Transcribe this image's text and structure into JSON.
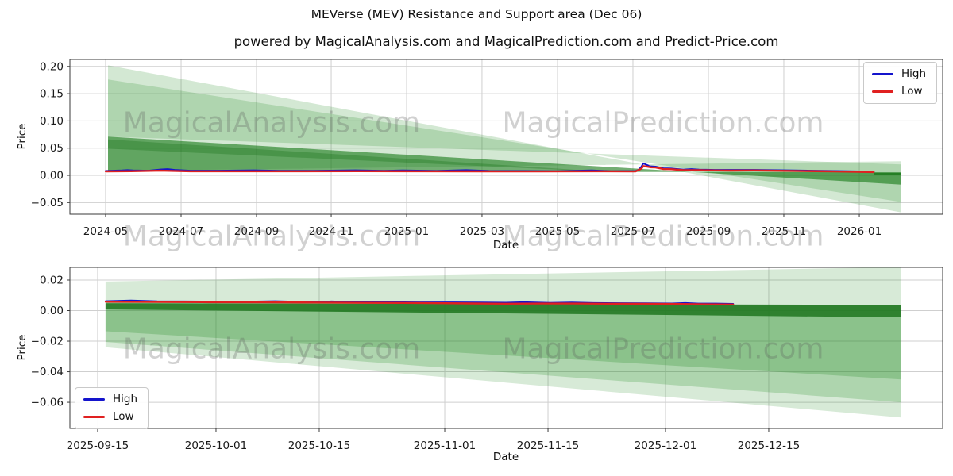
{
  "title": "MEVerse (MEV) Resistance and Support area (Dec 06)",
  "subtitle": "powered by MagicalAnalysis.com and MagicalPrediction.com and Predict-Price.com",
  "watermark": {
    "left_text": "MagicalAnalysis.com",
    "right_text": "MagicalPrediction.com"
  },
  "colors": {
    "high_line": "#1414cc",
    "low_line": "#e02020",
    "band_green_base": "#228b22",
    "grid": "#cfcfcf",
    "spine": "#3a3a3a"
  },
  "chart_data": [
    {
      "type": "line",
      "name": "long-term-forecast",
      "xlabel": "Date",
      "ylabel": "Price",
      "grid": true,
      "ylim": [
        -0.0714,
        0.2128
      ],
      "legend": {
        "position": "upper right",
        "items": [
          {
            "label": "High",
            "color": "#1414cc"
          },
          {
            "label": "Low",
            "color": "#e02020"
          }
        ]
      },
      "x_ticks": [
        {
          "f": 0.0409,
          "label": "2024-05"
        },
        {
          "f": 0.1274,
          "label": "2024-07"
        },
        {
          "f": 0.2138,
          "label": "2024-09"
        },
        {
          "f": 0.2994,
          "label": "2024-11"
        },
        {
          "f": 0.3858,
          "label": "2025-01"
        },
        {
          "f": 0.4722,
          "label": "2025-03"
        },
        {
          "f": 0.5587,
          "label": "2025-05"
        },
        {
          "f": 0.6451,
          "label": "2025-07"
        },
        {
          "f": 0.7316,
          "label": "2025-09"
        },
        {
          "f": 0.818,
          "label": "2025-11"
        },
        {
          "f": 0.9045,
          "label": "2026-01"
        }
      ],
      "y_ticks": [
        {
          "v": 0.2,
          "label": "0.20"
        },
        {
          "v": 0.15,
          "label": "0.15"
        },
        {
          "v": 0.1,
          "label": "0.10"
        },
        {
          "v": 0.05,
          "label": "0.05"
        },
        {
          "v": 0.0,
          "label": "0.00"
        },
        {
          "v": -0.05,
          "label": "−0.05"
        }
      ],
      "bands": [
        {
          "name": "resistance-outer",
          "color": "rgba(34,139,34,0.20)",
          "points": [
            [
              0.0437,
              0.202
            ],
            [
              0.9527,
              -0.068
            ],
            [
              0.9527,
              0.026
            ],
            [
              0.0437,
              0.008
            ]
          ]
        },
        {
          "name": "resistance-mid",
          "color": "rgba(34,139,34,0.20)",
          "points": [
            [
              0.0437,
              0.176
            ],
            [
              0.9527,
              -0.049
            ],
            [
              0.9527,
              0.02
            ],
            [
              0.0437,
              0.071
            ]
          ]
        },
        {
          "name": "support-dark",
          "color": "rgba(28,125,28,0.62)",
          "points": [
            [
              0.0437,
              0.071
            ],
            [
              0.9527,
              -0.017
            ],
            [
              0.9527,
              0.0055
            ],
            [
              0.0437,
              0.008
            ]
          ]
        },
        {
          "name": "support-dark-strip",
          "color": "rgba(20,110,20,0.30)",
          "points": [
            [
              0.0437,
              0.066
            ],
            [
              0.62,
              0.006
            ],
            [
              0.0437,
              0.049
            ]
          ]
        },
        {
          "name": "forecast-bar",
          "color": "rgba(34,125,34,0.92)",
          "points": [
            [
              0.9208,
              0.005
            ],
            [
              0.9527,
              0.005
            ],
            [
              0.9527,
              0.0
            ],
            [
              0.9208,
              0.0
            ]
          ]
        }
      ],
      "series": [
        {
          "name": "High",
          "color": "#1414cc",
          "width": 2,
          "points": [
            [
              0.041,
              0.0082
            ],
            [
              0.06,
              0.009
            ],
            [
              0.066,
              0.0096
            ],
            [
              0.072,
              0.009
            ],
            [
              0.09,
              0.0086
            ],
            [
              0.104,
              0.0108
            ],
            [
              0.112,
              0.0115
            ],
            [
              0.12,
              0.01
            ],
            [
              0.138,
              0.0086
            ],
            [
              0.17,
              0.0086
            ],
            [
              0.211,
              0.0094
            ],
            [
              0.24,
              0.0083
            ],
            [
              0.28,
              0.0084
            ],
            [
              0.327,
              0.0094
            ],
            [
              0.36,
              0.0084
            ],
            [
              0.381,
              0.0092
            ],
            [
              0.42,
              0.0082
            ],
            [
              0.454,
              0.0097
            ],
            [
              0.48,
              0.0082
            ],
            [
              0.52,
              0.008
            ],
            [
              0.557,
              0.0078
            ],
            [
              0.598,
              0.009
            ],
            [
              0.62,
              0.0078
            ],
            [
              0.648,
              0.008
            ],
            [
              0.652,
              0.0105
            ],
            [
              0.655,
              0.0165
            ],
            [
              0.657,
              0.022
            ],
            [
              0.659,
              0.0205
            ],
            [
              0.662,
              0.0185
            ],
            [
              0.664,
              0.0168
            ],
            [
              0.671,
              0.016
            ],
            [
              0.68,
              0.013
            ],
            [
              0.689,
              0.0126
            ],
            [
              0.703,
              0.0106
            ],
            [
              0.712,
              0.0116
            ],
            [
              0.721,
              0.0106
            ],
            [
              0.739,
              0.01
            ],
            [
              0.757,
              0.01
            ],
            [
              0.784,
              0.01
            ],
            [
              0.83,
              0.009
            ],
            [
              0.875,
              0.008
            ],
            [
              0.921,
              0.0068
            ]
          ]
        },
        {
          "name": "Low",
          "color": "#e02020",
          "width": 2.4,
          "points": [
            [
              0.041,
              0.0073
            ],
            [
              0.07,
              0.0076
            ],
            [
              0.104,
              0.0086
            ],
            [
              0.138,
              0.0075
            ],
            [
              0.2,
              0.0074
            ],
            [
              0.26,
              0.0074
            ],
            [
              0.33,
              0.0076
            ],
            [
              0.4,
              0.0074
            ],
            [
              0.47,
              0.0073
            ],
            [
              0.54,
              0.0072
            ],
            [
              0.6,
              0.0074
            ],
            [
              0.648,
              0.0072
            ],
            [
              0.655,
              0.0125
            ],
            [
              0.657,
              0.017
            ],
            [
              0.661,
              0.0162
            ],
            [
              0.666,
              0.0148
            ],
            [
              0.671,
              0.0145
            ],
            [
              0.68,
              0.0115
            ],
            [
              0.689,
              0.0112
            ],
            [
              0.703,
              0.0096
            ],
            [
              0.721,
              0.0095
            ],
            [
              0.739,
              0.009
            ],
            [
              0.757,
              0.0088
            ],
            [
              0.784,
              0.009
            ],
            [
              0.83,
              0.0082
            ],
            [
              0.875,
              0.0072
            ],
            [
              0.921,
              0.006
            ]
          ]
        }
      ]
    },
    {
      "type": "line",
      "name": "short-term-forecast",
      "xlabel": "Date",
      "ylabel": "Price",
      "grid": true,
      "ylim": [
        -0.0771,
        0.0283
      ],
      "legend": {
        "position": "lower left",
        "items": [
          {
            "label": "High",
            "color": "#1414cc"
          },
          {
            "label": "Low",
            "color": "#e02020"
          }
        ]
      },
      "x_ticks": [
        {
          "f": 0.0318,
          "label": "2025-09-15"
        },
        {
          "f": 0.1674,
          "label": "2025-10-01"
        },
        {
          "f": 0.2857,
          "label": "2025-10-15"
        },
        {
          "f": 0.4295,
          "label": "2025-11-01"
        },
        {
          "f": 0.5478,
          "label": "2025-11-15"
        },
        {
          "f": 0.6824,
          "label": "2025-12-01"
        },
        {
          "f": 0.8007,
          "label": "2025-12-15"
        }
      ],
      "y_ticks": [
        {
          "v": 0.02,
          "label": "0.02"
        },
        {
          "v": 0.0,
          "label": "0.00"
        },
        {
          "v": -0.02,
          "label": "−0.02"
        },
        {
          "v": -0.04,
          "label": "−0.04"
        },
        {
          "v": -0.06,
          "label": "−0.06"
        }
      ],
      "bands": [
        {
          "name": "area-outer",
          "color": "rgba(34,139,34,0.18)",
          "points": [
            [
              0.0409,
              0.019
            ],
            [
              0.9527,
              0.0285
            ],
            [
              0.9527,
              -0.07
            ],
            [
              0.0409,
              -0.024
            ]
          ]
        },
        {
          "name": "area-mid",
          "color": "rgba(34,139,34,0.22)",
          "points": [
            [
              0.0409,
              0.0055
            ],
            [
              0.9527,
              0.0035
            ],
            [
              0.9527,
              -0.06
            ],
            [
              0.0409,
              -0.0205
            ]
          ]
        },
        {
          "name": "area-inner",
          "color": "rgba(34,139,34,0.25)",
          "points": [
            [
              0.0409,
              0.005
            ],
            [
              0.9527,
              0.0035
            ],
            [
              0.9527,
              -0.045
            ],
            [
              0.0409,
              -0.0135
            ]
          ]
        },
        {
          "name": "forecast-bar",
          "color": "rgba(30,118,30,0.85)",
          "points": [
            [
              0.0409,
              0.0048
            ],
            [
              0.9527,
              0.0038
            ],
            [
              0.9527,
              -0.0044
            ],
            [
              0.0409,
              0.0008
            ]
          ]
        }
      ],
      "series": [
        {
          "name": "High",
          "color": "#1414cc",
          "width": 2,
          "points": [
            [
              0.041,
              0.0062
            ],
            [
              0.07,
              0.0066
            ],
            [
              0.1,
              0.0061
            ],
            [
              0.13,
              0.006
            ],
            [
              0.16,
              0.0059
            ],
            [
              0.2,
              0.0058
            ],
            [
              0.235,
              0.0062
            ],
            [
              0.255,
              0.0059
            ],
            [
              0.285,
              0.0057
            ],
            [
              0.3,
              0.006
            ],
            [
              0.32,
              0.0056
            ],
            [
              0.36,
              0.0055
            ],
            [
              0.4,
              0.0054
            ],
            [
              0.44,
              0.0054
            ],
            [
              0.47,
              0.0053
            ],
            [
              0.5,
              0.0052
            ],
            [
              0.52,
              0.0055
            ],
            [
              0.55,
              0.0051
            ],
            [
              0.575,
              0.0053
            ],
            [
              0.6,
              0.005
            ],
            [
              0.63,
              0.0049
            ],
            [
              0.66,
              0.0048
            ],
            [
              0.69,
              0.0047
            ],
            [
              0.705,
              0.005
            ],
            [
              0.72,
              0.0046
            ],
            [
              0.74,
              0.0046
            ],
            [
              0.76,
              0.0044
            ]
          ]
        },
        {
          "name": "Low",
          "color": "#e02020",
          "width": 2.4,
          "points": [
            [
              0.041,
              0.0058
            ],
            [
              0.1,
              0.0057
            ],
            [
              0.16,
              0.0055
            ],
            [
              0.22,
              0.0054
            ],
            [
              0.28,
              0.0053
            ],
            [
              0.34,
              0.0051
            ],
            [
              0.4,
              0.005
            ],
            [
              0.46,
              0.0047
            ],
            [
              0.5,
              0.0045
            ],
            [
              0.54,
              0.0046
            ],
            [
              0.58,
              0.0046
            ],
            [
              0.62,
              0.0045
            ],
            [
              0.66,
              0.0044
            ],
            [
              0.7,
              0.0043
            ],
            [
              0.73,
              0.0041
            ],
            [
              0.76,
              0.004
            ]
          ]
        }
      ]
    }
  ]
}
